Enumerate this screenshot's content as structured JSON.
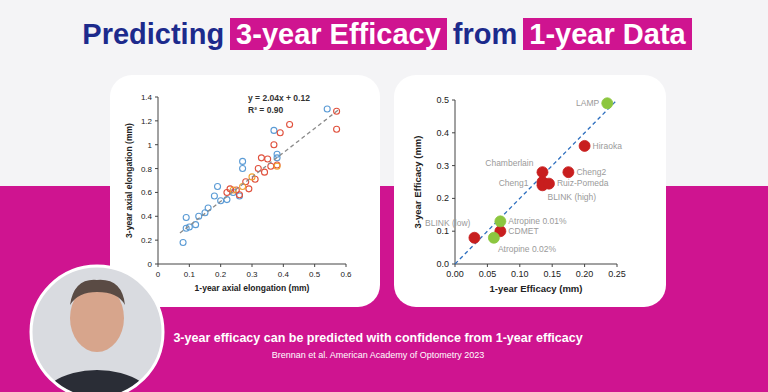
{
  "slide": {
    "title": {
      "part_1": "Predicting",
      "highlight_1": "3-year Efficacy",
      "part_2": "from",
      "highlight_2": "1-year Data"
    },
    "caption": "3-year efficacy can be predicted with confidence from 1-year efficacy",
    "citation": "Brennan et al. American Academy of Optometry 2023"
  },
  "chart_data": [
    {
      "type": "scatter",
      "x_label": "1-year axial elongation (mm)",
      "y_label": "3-year axial elongation (mm)",
      "annotations": [
        "y = 2.04x + 0.12",
        "R² = 0.90"
      ],
      "xlim": [
        0,
        0.6
      ],
      "xticks": [
        0,
        0.1,
        0.2,
        0.3,
        0.4,
        0.5,
        0.6
      ],
      "ylim": [
        0,
        1.4
      ],
      "yticks": [
        0,
        0.2,
        0.4,
        0.6,
        0.8,
        1,
        1.2,
        1.4
      ],
      "grid": false,
      "series": [
        {
          "color": "#5b9bd5",
          "marker": "open-circle",
          "x": [
            0.08,
            0.09,
            0.1,
            0.09,
            0.12,
            0.13,
            0.15,
            0.16,
            0.18,
            0.19,
            0.2,
            0.22,
            0.24,
            0.26,
            0.27,
            0.27,
            0.38,
            0.38,
            0.37,
            0.54
          ],
          "values": [
            0.18,
            0.3,
            0.31,
            0.39,
            0.33,
            0.4,
            0.43,
            0.47,
            0.57,
            0.65,
            0.53,
            0.54,
            0.6,
            0.57,
            0.8,
            0.86,
            0.92,
            0.89,
            1.12,
            1.3
          ]
        },
        {
          "color": "#e0503c",
          "marker": "open-circle",
          "x": [
            0.22,
            0.23,
            0.25,
            0.26,
            0.28,
            0.29,
            0.31,
            0.32,
            0.33,
            0.34,
            0.35,
            0.36,
            0.37,
            0.38,
            0.39,
            0.42,
            0.57,
            0.57
          ],
          "values": [
            0.6,
            0.63,
            0.62,
            0.58,
            0.69,
            0.63,
            0.71,
            0.8,
            0.89,
            0.77,
            0.88,
            0.82,
            1.0,
            0.83,
            1.1,
            1.17,
            1.28,
            1.13
          ]
        },
        {
          "color": "#f0a030",
          "marker": "open-circle",
          "x": [
            0.24,
            0.27,
            0.3,
            0.38
          ],
          "values": [
            0.62,
            0.65,
            0.73,
            0.82
          ]
        },
        {
          "type": "line",
          "color": "#8a8a8a",
          "line_style": "dashed",
          "x": [
            0.07,
            0.58
          ],
          "values": [
            0.26,
            1.3
          ]
        }
      ]
    },
    {
      "type": "scatter",
      "x_label": "1-year Efficacy (mm)",
      "y_label": "3-year Efficacy (mm)",
      "xlim": [
        0,
        0.25
      ],
      "xticks": [
        {
          "value": 0,
          "label": "0.00"
        },
        0.05,
        {
          "value": 0.1,
          "label": "0.10"
        },
        0.15,
        {
          "value": 0.2,
          "label": "0.20"
        },
        0.25
      ],
      "ylim": [
        0,
        0.5
      ],
      "yticks": [
        {
          "value": 0,
          "label": "0.0"
        },
        0.1,
        0.2,
        0.3,
        0.4,
        0.5
      ],
      "grid": false,
      "series": [
        {
          "type": "line",
          "color": "#2e6fbf",
          "line_style": "dashed",
          "x": [
            0,
            0.25
          ],
          "values": [
            0,
            0.5
          ]
        },
        {
          "color": "#c81e1e",
          "marker": "filled-circle",
          "x": [
            0.03,
            0.07,
            0.135,
            0.135,
            0.135,
            0.145,
            0.175,
            0.2
          ],
          "values": [
            0.08,
            0.1,
            0.28,
            0.25,
            0.24,
            0.245,
            0.28,
            0.36
          ],
          "labels": [
            "BLINK (low)",
            "CDMET",
            "Chamberlain",
            "Cheng1",
            "BLINK (high)",
            "Ruiz-Pomeda",
            "Cheng2",
            "Hiraoka"
          ]
        },
        {
          "color": "#8cc63f",
          "marker": "filled-circle",
          "x": [
            0.07,
            0.06,
            0.235
          ],
          "values": [
            0.13,
            0.08,
            0.49
          ],
          "labels": [
            "Atropine 0.01%",
            "Atropine 0.02%",
            "LAMP"
          ]
        }
      ]
    }
  ]
}
